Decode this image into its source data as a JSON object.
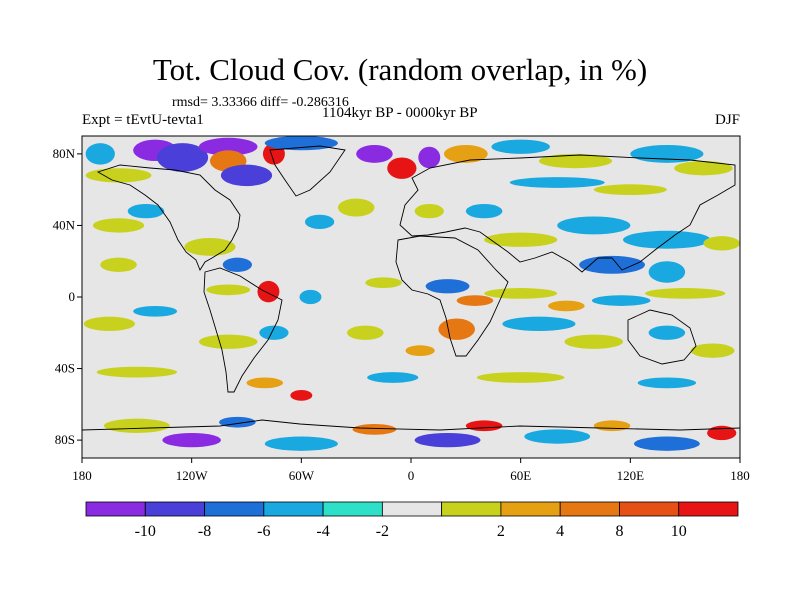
{
  "header": {
    "title": "Tot. Cloud Cov. (random overlap, in %)",
    "stats": "rmsd= 3.33366 diff= -0.286316",
    "expt": "Expt = tEvtU-tevta1",
    "period": "1104kyr BP - 0000kyr BP",
    "season": "DJF"
  },
  "map": {
    "lon_range": [
      -180,
      180
    ],
    "lat_range": [
      -90,
      90
    ],
    "x_ticks": [
      {
        "value": -180,
        "label": "180"
      },
      {
        "value": -120,
        "label": "120W"
      },
      {
        "value": -60,
        "label": "60W"
      },
      {
        "value": 0,
        "label": "0"
      },
      {
        "value": 60,
        "label": "60E"
      },
      {
        "value": 120,
        "label": "120E"
      },
      {
        "value": 180,
        "label": "180"
      }
    ],
    "y_ticks": [
      {
        "value": 80,
        "label": "80N"
      },
      {
        "value": 40,
        "label": "40N"
      },
      {
        "value": 0,
        "label": "0"
      },
      {
        "value": -40,
        "label": "40S"
      },
      {
        "value": -80,
        "label": "80S"
      }
    ],
    "background_color": "#e6e6e6",
    "coastline_color": "#000000",
    "blobs": [
      {
        "lon": -170,
        "lat": 80,
        "rx": 8,
        "ry": 6,
        "level": -4
      },
      {
        "lon": -140,
        "lat": 82,
        "rx": 12,
        "ry": 6,
        "level": -10
      },
      {
        "lon": -125,
        "lat": 78,
        "rx": 14,
        "ry": 8,
        "level": -8
      },
      {
        "lon": -100,
        "lat": 84,
        "rx": 16,
        "ry": 5,
        "level": -10
      },
      {
        "lon": -100,
        "lat": 76,
        "rx": 10,
        "ry": 6,
        "level": 8
      },
      {
        "lon": -75,
        "lat": 80,
        "rx": 6,
        "ry": 6,
        "level": 10
      },
      {
        "lon": -90,
        "lat": 68,
        "rx": 14,
        "ry": 6,
        "level": -8
      },
      {
        "lon": -60,
        "lat": 86,
        "rx": 20,
        "ry": 4,
        "level": -6
      },
      {
        "lon": -20,
        "lat": 80,
        "rx": 10,
        "ry": 5,
        "level": -10
      },
      {
        "lon": -5,
        "lat": 72,
        "rx": 8,
        "ry": 6,
        "level": 10
      },
      {
        "lon": 10,
        "lat": 78,
        "rx": 6,
        "ry": 6,
        "level": -10
      },
      {
        "lon": 30,
        "lat": 80,
        "rx": 12,
        "ry": 5,
        "level": 6
      },
      {
        "lon": 60,
        "lat": 84,
        "rx": 16,
        "ry": 4,
        "level": -4
      },
      {
        "lon": 90,
        "lat": 76,
        "rx": 20,
        "ry": 4,
        "level": 4
      },
      {
        "lon": 140,
        "lat": 80,
        "rx": 20,
        "ry": 5,
        "level": -4
      },
      {
        "lon": 160,
        "lat": 72,
        "rx": 16,
        "ry": 4,
        "level": 4
      },
      {
        "lon": 80,
        "lat": 64,
        "rx": 26,
        "ry": 3,
        "level": -4
      },
      {
        "lon": 120,
        "lat": 60,
        "rx": 20,
        "ry": 3,
        "level": 4
      },
      {
        "lon": -160,
        "lat": 68,
        "rx": 18,
        "ry": 4,
        "level": 4
      },
      {
        "lon": -30,
        "lat": 50,
        "rx": 10,
        "ry": 5,
        "level": 4
      },
      {
        "lon": -50,
        "lat": 42,
        "rx": 8,
        "ry": 4,
        "level": -4
      },
      {
        "lon": 10,
        "lat": 48,
        "rx": 8,
        "ry": 4,
        "level": 4
      },
      {
        "lon": 40,
        "lat": 48,
        "rx": 10,
        "ry": 4,
        "level": -4
      },
      {
        "lon": -160,
        "lat": 40,
        "rx": 14,
        "ry": 4,
        "level": 4
      },
      {
        "lon": -145,
        "lat": 48,
        "rx": 10,
        "ry": 4,
        "level": -4
      },
      {
        "lon": -110,
        "lat": 28,
        "rx": 14,
        "ry": 5,
        "level": 4
      },
      {
        "lon": -95,
        "lat": 18,
        "rx": 8,
        "ry": 4,
        "level": -6
      },
      {
        "lon": -160,
        "lat": 18,
        "rx": 10,
        "ry": 4,
        "level": 4
      },
      {
        "lon": 60,
        "lat": 32,
        "rx": 20,
        "ry": 4,
        "level": 4
      },
      {
        "lon": 100,
        "lat": 40,
        "rx": 20,
        "ry": 5,
        "level": -4
      },
      {
        "lon": 140,
        "lat": 32,
        "rx": 24,
        "ry": 5,
        "level": -4
      },
      {
        "lon": 110,
        "lat": 18,
        "rx": 18,
        "ry": 5,
        "level": -6
      },
      {
        "lon": 140,
        "lat": 14,
        "rx": 10,
        "ry": 6,
        "level": -4
      },
      {
        "lon": 170,
        "lat": 30,
        "rx": 10,
        "ry": 4,
        "level": 4
      },
      {
        "lon": -78,
        "lat": 3,
        "rx": 6,
        "ry": 6,
        "level": 10
      },
      {
        "lon": -100,
        "lat": 4,
        "rx": 12,
        "ry": 3,
        "level": 4
      },
      {
        "lon": -55,
        "lat": 0,
        "rx": 6,
        "ry": 4,
        "level": -4
      },
      {
        "lon": -15,
        "lat": 8,
        "rx": 10,
        "ry": 3,
        "level": 4
      },
      {
        "lon": 20,
        "lat": 6,
        "rx": 12,
        "ry": 4,
        "level": -6
      },
      {
        "lon": 35,
        "lat": -2,
        "rx": 10,
        "ry": 3,
        "level": 8
      },
      {
        "lon": 60,
        "lat": 2,
        "rx": 20,
        "ry": 3,
        "level": 4
      },
      {
        "lon": 85,
        "lat": -5,
        "rx": 10,
        "ry": 3,
        "level": 6
      },
      {
        "lon": 115,
        "lat": -2,
        "rx": 16,
        "ry": 3,
        "level": -4
      },
      {
        "lon": 150,
        "lat": 2,
        "rx": 22,
        "ry": 3,
        "level": 4
      },
      {
        "lon": -165,
        "lat": -15,
        "rx": 14,
        "ry": 4,
        "level": 4
      },
      {
        "lon": -140,
        "lat": -8,
        "rx": 12,
        "ry": 3,
        "level": -4
      },
      {
        "lon": -100,
        "lat": -25,
        "rx": 16,
        "ry": 4,
        "level": 4
      },
      {
        "lon": -75,
        "lat": -20,
        "rx": 8,
        "ry": 4,
        "level": -4
      },
      {
        "lon": -25,
        "lat": -20,
        "rx": 10,
        "ry": 4,
        "level": 4
      },
      {
        "lon": 25,
        "lat": -18,
        "rx": 10,
        "ry": 6,
        "level": 8
      },
      {
        "lon": 5,
        "lat": -30,
        "rx": 8,
        "ry": 3,
        "level": 6
      },
      {
        "lon": 70,
        "lat": -15,
        "rx": 20,
        "ry": 4,
        "level": -4
      },
      {
        "lon": 100,
        "lat": -25,
        "rx": 16,
        "ry": 4,
        "level": 4
      },
      {
        "lon": 140,
        "lat": -20,
        "rx": 10,
        "ry": 4,
        "level": -4
      },
      {
        "lon": 165,
        "lat": -30,
        "rx": 12,
        "ry": 4,
        "level": 4
      },
      {
        "lon": -150,
        "lat": -42,
        "rx": 22,
        "ry": 3,
        "level": 4
      },
      {
        "lon": -80,
        "lat": -48,
        "rx": 10,
        "ry": 3,
        "level": 6
      },
      {
        "lon": -60,
        "lat": -55,
        "rx": 6,
        "ry": 3,
        "level": 10
      },
      {
        "lon": -10,
        "lat": -45,
        "rx": 14,
        "ry": 3,
        "level": -4
      },
      {
        "lon": 60,
        "lat": -45,
        "rx": 24,
        "ry": 3,
        "level": 4
      },
      {
        "lon": 140,
        "lat": -48,
        "rx": 16,
        "ry": 3,
        "level": -4
      },
      {
        "lon": -150,
        "lat": -72,
        "rx": 18,
        "ry": 4,
        "level": 4
      },
      {
        "lon": -120,
        "lat": -80,
        "rx": 16,
        "ry": 4,
        "level": -10
      },
      {
        "lon": -95,
        "lat": -70,
        "rx": 10,
        "ry": 3,
        "level": -6
      },
      {
        "lon": -60,
        "lat": -82,
        "rx": 20,
        "ry": 4,
        "level": -4
      },
      {
        "lon": -20,
        "lat": -74,
        "rx": 12,
        "ry": 3,
        "level": 8
      },
      {
        "lon": 20,
        "lat": -80,
        "rx": 18,
        "ry": 4,
        "level": -8
      },
      {
        "lon": 40,
        "lat": -72,
        "rx": 10,
        "ry": 3,
        "level": 10
      },
      {
        "lon": 80,
        "lat": -78,
        "rx": 18,
        "ry": 4,
        "level": -4
      },
      {
        "lon": 110,
        "lat": -72,
        "rx": 10,
        "ry": 3,
        "level": 6
      },
      {
        "lon": 140,
        "lat": -82,
        "rx": 18,
        "ry": 4,
        "level": -6
      },
      {
        "lon": 170,
        "lat": -76,
        "rx": 8,
        "ry": 4,
        "level": 10
      }
    ]
  },
  "colorbar": {
    "bins": [
      {
        "color": "#8a2be2"
      },
      {
        "color": "#4a3fd8"
      },
      {
        "color": "#1f6fd8"
      },
      {
        "color": "#19a9e0"
      },
      {
        "color": "#2ee0c8"
      },
      {
        "color": "#e6e6e6"
      },
      {
        "color": "#c8d21e"
      },
      {
        "color": "#e6a014"
      },
      {
        "color": "#e67814"
      },
      {
        "color": "#e65014"
      },
      {
        "color": "#e61414"
      }
    ],
    "labels": [
      "-10",
      "-8",
      "-6",
      "-4",
      "-2",
      "2",
      "4",
      "8",
      "10"
    ],
    "level_colors": {
      "-10": "#8a2be2",
      "-8": "#4a3fd8",
      "-6": "#1f6fd8",
      "-4": "#19a9e0",
      "-2": "#2ee0c8",
      "4": "#c8d21e",
      "6": "#e6a014",
      "8": "#e67814",
      "10": "#e61414"
    }
  }
}
